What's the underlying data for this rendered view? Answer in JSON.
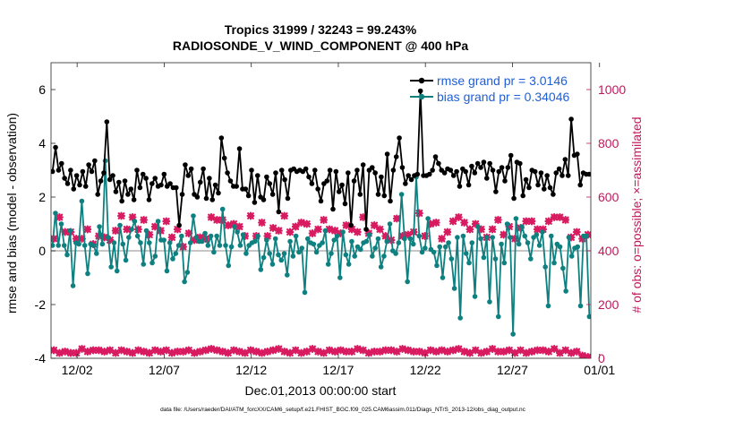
{
  "chart_data": {
    "type": "line",
    "title_line1": "Tropics 31999 / 32243 = 99.243%",
    "title_line2": "RADIOSONDE_V_WIND_COMPONENT @ 400 hPa",
    "xlabel": "Dec.01,2013 00:00:00 start",
    "ylabel_left": "rmse and bias (model - observation)",
    "ylabel_right": "# of obs: o=possible; ×=assimilated",
    "footnote": "data file: /Users/raeder/DAI/ATM_forcXX/CAM6_setup/f.e21.FHIST_BGC.f09_025.CAM6assim.011/Diags_NTrS_2013-12/obs_diag_output.nc",
    "x_range_days": [
      0.5,
      31.5
    ],
    "ylim_left": [
      -4,
      7
    ],
    "ylim_right": [
      0,
      1100
    ],
    "x_tick_positions_days": [
      2,
      7,
      12,
      17,
      22,
      27,
      32
    ],
    "x_tick_labels": [
      "12/02",
      "12/07",
      "12/12",
      "12/17",
      "12/22",
      "12/27",
      "01/01"
    ],
    "y_left_ticks": [
      -4,
      -2,
      0,
      2,
      4,
      6
    ],
    "y_right_ticks": [
      0,
      200,
      400,
      600,
      800,
      1000
    ],
    "legend": {
      "rmse_label": "rmse grand pr = 3.0146",
      "bias_label": "bias grand pr = 0.34046",
      "location": "top-right"
    },
    "colors": {
      "rmse": "#000000",
      "bias": "#0e8080",
      "obs": "#d81b60",
      "zero_line": "#b4b4b4",
      "right_axis": "#c2185b",
      "legend_text": "#1f5fd6"
    },
    "rmse": [
      2.95,
      3.85,
      3.0,
      3.25,
      2.7,
      2.5,
      3.0,
      2.3,
      2.8,
      2.45,
      2.95,
      2.4,
      3.2,
      2.95,
      3.35,
      2.1,
      2.6,
      2.9,
      4.8,
      2.65,
      2.8,
      2.2,
      2.55,
      1.85,
      2.6,
      2.1,
      2.3,
      1.9,
      3.0,
      2.35,
      2.85,
      2.7,
      1.9,
      2.5,
      2.7,
      2.4,
      2.45,
      2.85,
      2.4,
      2.5,
      2.35,
      2.35,
      0.95,
      2.1,
      3.2,
      2.8,
      3.05,
      2.1,
      2.0,
      2.55,
      3.05,
      1.95,
      2.7,
      1.9,
      2.45,
      2.15,
      4.2,
      3.45,
      2.9,
      2.6,
      2.4,
      2.4,
      3.8,
      2.3,
      2.3,
      2.05,
      3.0,
      1.8,
      2.8,
      2.0,
      1.9,
      2.75,
      2.5,
      2.1,
      2.9,
      1.45,
      3.0,
      2.65,
      1.95,
      3.0,
      3.05,
      2.95,
      3.0,
      2.95,
      3.05,
      2.75,
      2.5,
      3.0,
      2.3,
      1.85,
      2.5,
      2.6,
      3.0,
      1.55,
      2.95,
      2.2,
      2.45,
      1.75,
      2.9,
      0.95,
      2.6,
      3.0,
      2.1,
      3.2,
      0.8,
      3.0,
      3.1,
      2.9,
      2.1,
      2.75,
      2.05,
      3.6,
      1.85,
      3.0,
      3.5,
      4.2,
      3.1,
      2.5,
      2.8,
      2.65,
      2.8,
      2.85,
      5.95,
      2.8,
      2.8,
      2.85,
      3.0,
      3.5,
      3.25,
      3.0,
      2.9,
      3.05,
      3.0,
      2.8,
      2.95,
      2.4,
      3.05,
      2.95,
      2.45,
      3.15,
      2.9,
      3.25,
      3.1,
      3.3,
      2.7,
      3.25,
      3.0,
      2.2,
      2.95,
      3.1,
      2.6,
      3.1,
      3.55,
      1.95,
      3.3,
      3.25,
      2.05,
      2.65,
      2.35,
      3.0,
      2.95,
      2.45,
      2.9,
      2.3,
      2.8,
      2.35,
      2.1,
      2.9,
      3.05,
      2.8,
      3.4,
      2.8,
      4.9,
      3.55,
      3.6,
      2.45,
      2.9,
      2.85,
      2.85
    ],
    "bias": [
      0.2,
      1.4,
      0.2,
      1.0,
      0.2,
      -0.15,
      0.75,
      -1.3,
      0.3,
      0.25,
      1.85,
      0.2,
      -0.85,
      0.25,
      0.2,
      -0.1,
      0.9,
      0.25,
      3.35,
      0.5,
      -0.6,
      0.3,
      -0.75,
      0.95,
      0.25,
      -0.35,
      0.5,
      0.8,
      1.1,
      0.55,
      0.3,
      -0.5,
      0.75,
      0.3,
      -0.45,
      -0.2,
      1.1,
      0.4,
      0.4,
      -0.75,
      0.3,
      -0.3,
      -0.1,
      0.2,
      0.55,
      -1.15,
      -0.8,
      0.3,
      1.3,
      0.5,
      0.35,
      0.35,
      0.65,
      0.2,
      0.55,
      -0.05,
      0.55,
      0.2,
      1.55,
      0.2,
      -0.55,
      0.15,
      0.9,
      0.7,
      0.2,
      0.6,
      -0.1,
      0.2,
      0.3,
      0.35,
      0.55,
      -0.7,
      -0.25,
      0.4,
      -0.1,
      -0.5,
      0.45,
      -0.15,
      -0.35,
      -0.1,
      -0.9,
      0.35,
      -0.2,
      0.55,
      -0.05,
      0.1,
      -1.55,
      0.45,
      0.3,
      0.25,
      -0.05,
      0.2,
      0.3,
      0.75,
      -0.5,
      -0.1,
      0.4,
      0.55,
      -1.0,
      0.7,
      -0.15,
      -0.5,
      0.35,
      -0.2,
      0.15,
      0.05,
      0.3,
      0.35,
      0.6,
      -0.2,
      0.1,
      0.45,
      -0.6,
      -0.2,
      0.35,
      1.0,
      0.0,
      -0.1,
      0.3,
      2.1,
      0.45,
      -1.15,
      0.45,
      0.25,
      2.75,
      0.55,
      -0.05,
      0.1,
      1.2,
      0.05,
      -0.05,
      -0.55,
      0.15,
      -1.0,
      0.15,
      0.3,
      -0.3,
      -1.4,
      0.5,
      -2.5,
      0.55,
      -0.1,
      -0.45,
      0.3,
      -1.7,
      0.9,
      0.45,
      -0.25,
      0.5,
      -1.9,
      0.5,
      -0.3,
      -2.45,
      0.25,
      -0.45,
      1.0,
      0.5,
      -3.1,
      1.2,
      0.25,
      0.9,
      0.55,
      0.3,
      -0.3,
      0.5,
      0.6,
      0.2,
      0.7,
      -0.6,
      -2.05,
      0.55,
      -0.45,
      0.25,
      0.15,
      -0.65,
      -1.5,
      0.5,
      -0.2,
      0.1,
      0.15,
      -2.05,
      0.55,
      0.55,
      -2.45
    ],
    "obs_upper": [
      445,
      525,
      470,
      470,
      445,
      445,
      480,
      425,
      455,
      450,
      440,
      475,
      530,
      480,
      525,
      480,
      515,
      460,
      490,
      475,
      510,
      450,
      480,
      415,
      465,
      440,
      450,
      445,
      525,
      515,
      515,
      495,
      500,
      490,
      455,
      530,
      455,
      505,
      455,
      485,
      475,
      530,
      470,
      490,
      505,
      500,
      465,
      480,
      515,
      480,
      475,
      465,
      495,
      480,
      470,
      525,
      465,
      495,
      480,
      455,
      440,
      520,
      455,
      460,
      470,
      540,
      455,
      500,
      505,
      445,
      470,
      510,
      525,
      505,
      480,
      500,
      480,
      450,
      480,
      515,
      460,
      490,
      445,
      485,
      510,
      510,
      480,
      480,
      510,
      525,
      525,
      515,
      450,
      470,
      445,
      460
    ],
    "obs_lower": [
      30,
      20,
      25,
      20,
      20,
      35,
      25,
      30,
      30,
      25,
      30,
      20,
      30,
      25,
      20,
      30,
      25,
      20,
      30,
      25,
      30,
      20,
      25,
      25,
      30,
      20,
      25,
      30,
      35,
      30,
      25,
      20,
      30,
      25,
      20,
      30,
      25,
      20,
      25,
      30,
      35,
      25,
      20,
      30,
      20,
      25,
      35,
      25,
      20,
      30,
      25,
      30,
      25,
      25,
      35,
      30,
      20,
      25,
      25,
      30,
      30,
      25,
      35,
      30,
      25,
      25,
      20,
      30,
      25,
      30,
      25,
      30,
      35,
      25,
      20,
      30,
      20,
      25,
      35,
      25,
      25,
      30,
      20,
      30,
      20,
      25,
      30,
      30,
      25,
      35,
      20,
      30,
      20,
      25,
      10,
      5
    ]
  }
}
